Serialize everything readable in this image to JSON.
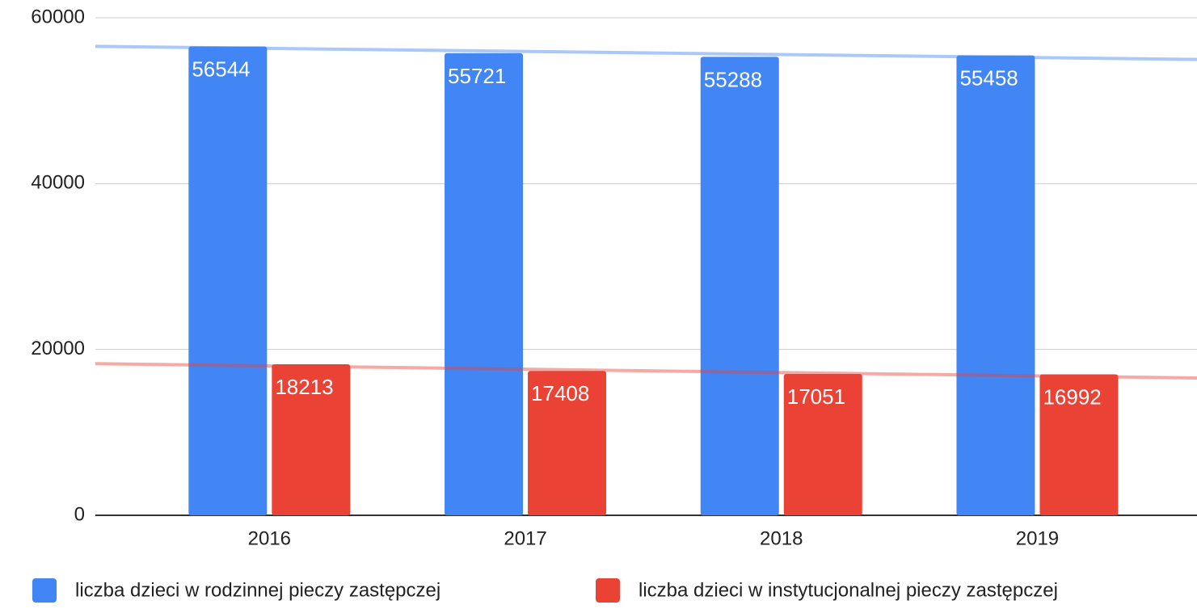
{
  "chart_data": {
    "type": "bar",
    "categories": [
      "2016",
      "2017",
      "2018",
      "2019"
    ],
    "series": [
      {
        "name": "liczba dzieci w rodzinnej pieczy zastępczej",
        "color": "#4285f4",
        "values": [
          56544,
          55721,
          55288,
          55458
        ]
      },
      {
        "name": "liczba dzieci w instytucjonalnej pieczy zastępczej",
        "color": "#ea4335",
        "values": [
          18213,
          17408,
          17051,
          16992
        ]
      }
    ],
    "ylim": [
      0,
      60000
    ],
    "yticks": [
      0,
      20000,
      40000,
      60000
    ],
    "grid": true,
    "trendline": true,
    "data_labels": true,
    "legend": "bottom"
  }
}
